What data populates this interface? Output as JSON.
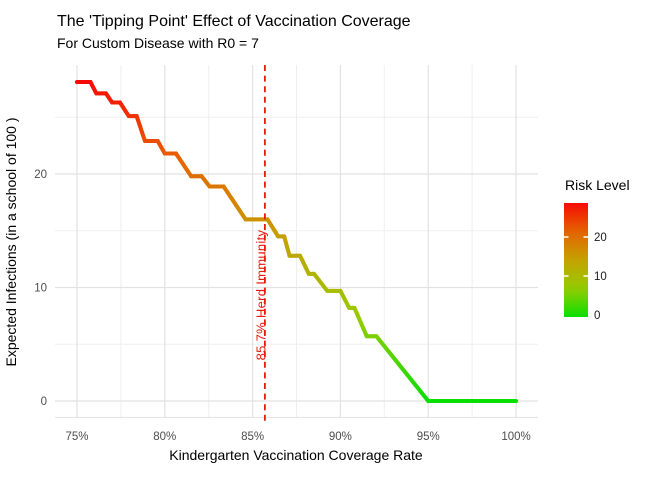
{
  "chart_data": {
    "type": "line",
    "title": "The 'Tipping Point' Effect of Vaccination Coverage",
    "subtitle": "For Custom Disease with R0 = 7",
    "xlabel": "Kindergarten Vaccination Coverage Rate",
    "ylabel": "Expected Infections (in a school of 100 )",
    "xlim": [
      73.75,
      101.25
    ],
    "ylim": [
      -1.5,
      29.6
    ],
    "grid": true,
    "x_ticks": [
      {
        "v": 75,
        "label": "75%"
      },
      {
        "v": 80,
        "label": "80%"
      },
      {
        "v": 85,
        "label": "85%"
      },
      {
        "v": 90,
        "label": "90%"
      },
      {
        "v": 95,
        "label": "95%"
      },
      {
        "v": 100,
        "label": "100%"
      }
    ],
    "x_minor": [
      77.5,
      82.5,
      87.5,
      92.5,
      97.5
    ],
    "y_ticks": [
      {
        "v": 0,
        "label": "0"
      },
      {
        "v": 10,
        "label": "10"
      },
      {
        "v": 20,
        "label": "20"
      }
    ],
    "y_minor": [
      5,
      15,
      25
    ],
    "series": [
      {
        "name": "expected-infections",
        "points": [
          [
            75.0,
            28.1
          ],
          [
            75.77,
            28.1
          ],
          [
            76.1,
            27.1
          ],
          [
            76.65,
            27.1
          ],
          [
            77.0,
            26.3
          ],
          [
            77.45,
            26.3
          ],
          [
            77.95,
            25.1
          ],
          [
            78.4,
            25.1
          ],
          [
            78.87,
            22.9
          ],
          [
            79.6,
            22.9
          ],
          [
            80.0,
            21.8
          ],
          [
            80.64,
            21.8
          ],
          [
            81.5,
            19.8
          ],
          [
            82.1,
            19.8
          ],
          [
            82.55,
            18.9
          ],
          [
            83.35,
            18.9
          ],
          [
            84.6,
            16.0
          ],
          [
            85.85,
            16.0
          ],
          [
            86.45,
            14.5
          ],
          [
            86.8,
            14.5
          ],
          [
            87.1,
            12.8
          ],
          [
            87.7,
            12.8
          ],
          [
            88.2,
            11.2
          ],
          [
            88.5,
            11.2
          ],
          [
            89.25,
            9.7
          ],
          [
            90.0,
            9.7
          ],
          [
            90.5,
            8.2
          ],
          [
            90.8,
            8.2
          ],
          [
            91.5,
            5.7
          ],
          [
            92.05,
            5.7
          ],
          [
            95.0,
            0.0
          ],
          [
            100.0,
            0.0
          ]
        ]
      }
    ],
    "color_scale": {
      "title": "Risk Level",
      "vmin": 0,
      "vmax": 28.1,
      "stops": [
        [
          0.0,
          "#0ade00"
        ],
        [
          0.25,
          "#96cc00"
        ],
        [
          0.5,
          "#c4a200"
        ],
        [
          0.75,
          "#e56400"
        ],
        [
          1.0,
          "#f60a05"
        ]
      ],
      "legend_ticks": [
        {
          "v": 20,
          "label": "20"
        },
        {
          "v": 10,
          "label": "10"
        },
        {
          "v": 0,
          "label": "0"
        }
      ]
    },
    "annotation": {
      "x": 85.7,
      "label": "85.7% Herd Immunity",
      "color": "#e8190f"
    },
    "legend_position": "right"
  },
  "colors": {
    "background": "#ffffff",
    "grid_major": "#e2e2e2",
    "grid_minor": "#efefef",
    "axis_line": "#e2e2e2",
    "tick_label": "#4d4d4d",
    "text": "#000000",
    "legend_tick": "#ffffff"
  }
}
